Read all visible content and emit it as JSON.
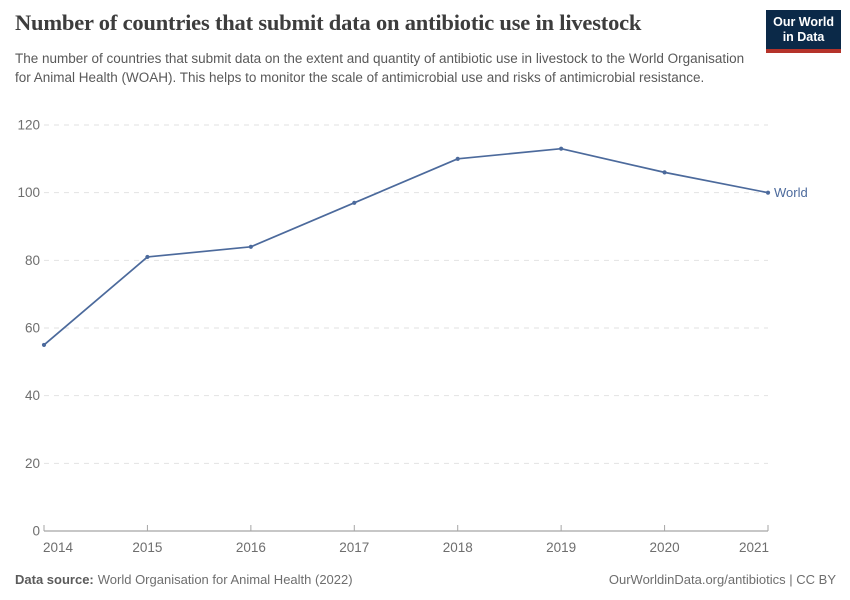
{
  "header": {
    "title": "Number of countries that submit data on antibiotic use in livestock",
    "subtitle": "The number of countries that submit data on the extent and quantity of antibiotic use in livestock to the World Organisation for Animal Health (WOAH). This helps to monitor the scale of antimicrobial use and risks of antimicrobial resistance.",
    "logo": {
      "line1": "Our World",
      "line2": "in Data",
      "bg_color": "#0b2948",
      "stripe_color": "#b5332a",
      "text_color": "#ffffff"
    }
  },
  "chart_data": {
    "type": "line",
    "title": "Number of countries that submit data on antibiotic use in livestock",
    "x": [
      2014,
      2015,
      2016,
      2017,
      2018,
      2019,
      2020,
      2021
    ],
    "series": [
      {
        "name": "World",
        "color": "#4C6A9C",
        "values": [
          55,
          81,
          84,
          97,
          110,
          113,
          106,
          100
        ]
      }
    ],
    "xlabel": "",
    "ylabel": "",
    "ylim": [
      0,
      120
    ],
    "yticks": [
      0,
      20,
      40,
      60,
      80,
      100,
      120
    ],
    "xticks": [
      2014,
      2015,
      2016,
      2017,
      2018,
      2019,
      2020,
      2021
    ],
    "grid": "horizontal-dashed",
    "legend": "end-of-line-label"
  },
  "footer": {
    "source_label": "Data source:",
    "source_text": "World Organisation for Animal Health (2022)",
    "credit": "OurWorldinData.org/antibiotics | CC BY"
  },
  "colors": {
    "title": "#3d3d3d",
    "subtitle": "#595959",
    "axis_label": "#6e6e6e",
    "gridline": "#e2e2e2",
    "axis_line": "#8f8f8f",
    "tick": "#a5a5a5",
    "series_blue": "#4C6A9C"
  }
}
